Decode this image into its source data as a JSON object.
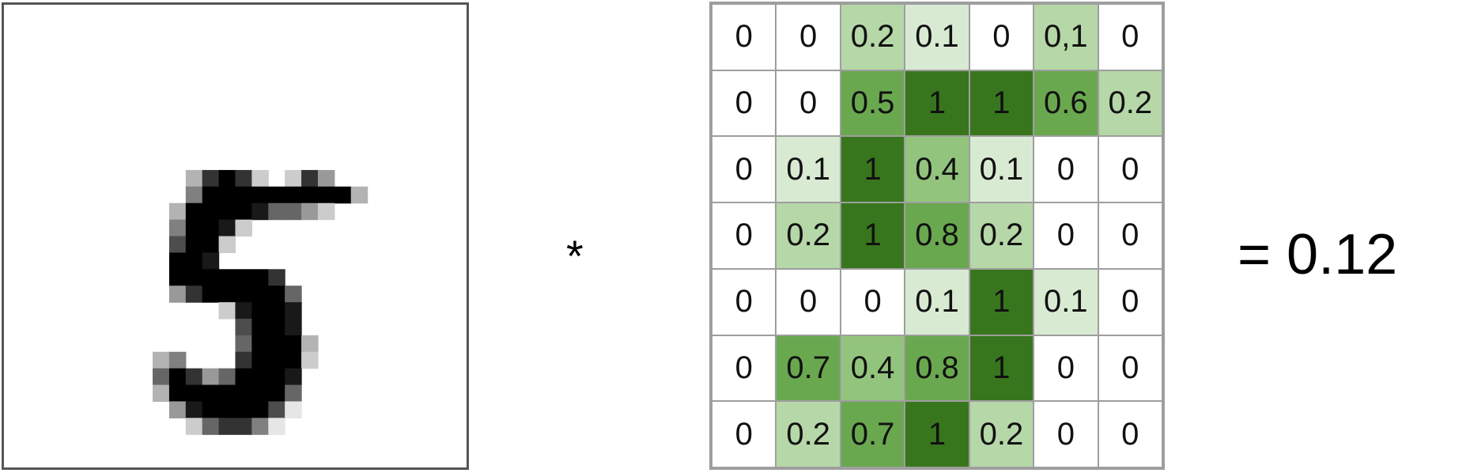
{
  "input_image": {
    "digit": "5",
    "resolution": 28,
    "ink_color": "#000000",
    "background_color": "#ffffff",
    "pixels": [
      [
        0,
        0,
        0,
        0,
        0,
        0,
        0,
        0,
        0,
        0,
        0,
        0,
        0,
        0,
        0,
        0,
        0,
        0,
        0,
        0,
        0,
        0,
        0,
        0,
        0,
        0,
        0,
        0
      ],
      [
        0,
        0,
        0,
        0,
        0,
        0,
        0,
        0,
        0,
        0,
        0,
        0,
        0,
        0,
        0,
        0,
        0,
        0,
        0,
        0,
        0,
        0,
        0,
        0,
        0,
        0,
        0,
        0
      ],
      [
        0,
        0,
        0,
        0,
        0,
        0,
        0,
        0,
        0,
        0,
        0,
        0,
        0,
        0,
        0,
        0,
        0,
        0,
        0,
        0,
        0,
        0,
        0,
        0,
        0,
        0,
        0,
        0
      ],
      [
        0,
        0,
        0,
        0,
        0,
        0,
        0,
        0,
        0,
        0,
        0,
        0,
        0,
        0,
        0,
        0,
        0,
        0,
        0,
        0,
        0,
        0,
        0,
        0,
        0,
        0,
        0,
        0
      ],
      [
        0,
        0,
        0,
        0,
        0,
        0,
        0,
        0,
        0,
        0,
        0,
        0,
        0,
        0,
        0,
        0,
        0,
        0,
        0,
        0,
        0,
        0,
        0,
        0,
        0,
        0,
        0,
        0
      ],
      [
        0,
        0,
        0,
        0,
        0,
        0,
        0,
        0,
        0,
        0,
        0,
        0,
        0,
        0,
        0,
        0,
        0,
        0,
        0,
        0,
        0,
        0,
        0,
        0,
        0,
        0,
        0,
        0
      ],
      [
        0,
        0,
        0,
        0,
        0,
        0,
        0,
        0,
        0,
        0,
        0,
        0,
        0,
        0,
        0,
        0,
        0,
        0,
        0,
        0,
        0,
        0,
        0,
        0,
        0,
        0,
        0,
        0
      ],
      [
        0,
        0,
        0,
        0,
        0,
        0,
        0,
        0,
        0,
        0,
        0,
        0,
        0,
        0,
        0,
        0,
        0,
        0,
        0,
        0,
        0,
        0,
        0,
        0,
        0,
        0,
        0,
        0
      ],
      [
        0,
        0,
        0,
        0,
        0,
        0,
        0,
        0,
        0,
        0,
        0,
        0,
        0,
        0,
        0,
        0,
        0,
        0,
        0,
        0,
        0,
        0,
        0,
        0,
        0,
        0,
        0,
        0
      ],
      [
        0,
        0,
        0,
        0,
        0,
        0,
        0,
        0,
        0,
        0,
        0,
        0,
        0,
        0,
        0,
        0,
        0,
        0,
        0,
        0,
        0,
        0,
        0,
        0,
        0,
        0,
        0,
        0
      ],
      [
        0,
        0,
        0,
        0,
        0,
        0,
        0,
        0,
        0,
        0,
        0,
        0.3,
        0.8,
        1,
        0.8,
        0.2,
        0,
        0.2,
        0.8,
        0.4,
        0,
        0,
        0,
        0,
        0,
        0,
        0,
        0
      ],
      [
        0,
        0,
        0,
        0,
        0,
        0,
        0,
        0,
        0,
        0,
        0,
        0.5,
        1,
        1,
        1,
        1,
        1,
        1,
        1,
        1,
        1,
        0.3,
        0,
        0,
        0,
        0,
        0,
        0
      ],
      [
        0,
        0,
        0,
        0,
        0,
        0,
        0,
        0,
        0,
        0,
        0.3,
        1,
        1,
        1,
        1,
        0.9,
        0.6,
        0.6,
        0.4,
        0.2,
        0,
        0,
        0,
        0,
        0,
        0,
        0,
        0
      ],
      [
        0,
        0,
        0,
        0,
        0,
        0,
        0,
        0,
        0,
        0,
        0.5,
        1,
        1,
        0.9,
        0.2,
        0,
        0,
        0,
        0,
        0,
        0,
        0,
        0,
        0,
        0,
        0,
        0,
        0
      ],
      [
        0,
        0,
        0,
        0,
        0,
        0,
        0,
        0,
        0,
        0,
        0.7,
        1,
        1,
        0.2,
        0,
        0,
        0,
        0,
        0,
        0,
        0,
        0,
        0,
        0,
        0,
        0,
        0,
        0
      ],
      [
        0,
        0,
        0,
        0,
        0,
        0,
        0,
        0,
        0,
        0,
        1,
        1,
        0.9,
        0,
        0,
        0,
        0,
        0,
        0,
        0,
        0,
        0,
        0,
        0,
        0,
        0,
        0,
        0
      ],
      [
        0,
        0,
        0,
        0,
        0,
        0,
        0,
        0,
        0,
        0,
        1,
        1,
        1,
        1,
        1,
        1,
        0.8,
        0,
        0,
        0,
        0,
        0,
        0,
        0,
        0,
        0,
        0,
        0
      ],
      [
        0,
        0,
        0,
        0,
        0,
        0,
        0,
        0,
        0,
        0,
        0.4,
        0.8,
        1,
        1,
        1,
        1,
        1,
        0.6,
        0,
        0,
        0,
        0,
        0,
        0,
        0,
        0,
        0,
        0
      ],
      [
        0,
        0,
        0,
        0,
        0,
        0,
        0,
        0,
        0,
        0,
        0,
        0,
        0,
        0.2,
        0.9,
        1,
        1,
        0.9,
        0,
        0,
        0,
        0,
        0,
        0,
        0,
        0,
        0,
        0
      ],
      [
        0,
        0,
        0,
        0,
        0,
        0,
        0,
        0,
        0,
        0,
        0,
        0,
        0,
        0,
        0.7,
        1,
        1,
        0.9,
        0,
        0,
        0,
        0,
        0,
        0,
        0,
        0,
        0,
        0
      ],
      [
        0,
        0,
        0,
        0,
        0,
        0,
        0,
        0,
        0,
        0,
        0,
        0,
        0,
        0,
        0.6,
        1,
        1,
        1,
        0.3,
        0,
        0,
        0,
        0,
        0,
        0,
        0,
        0,
        0
      ],
      [
        0,
        0,
        0,
        0,
        0,
        0,
        0,
        0,
        0,
        0.3,
        0.5,
        0,
        0,
        0,
        0.8,
        1,
        1,
        1,
        0.2,
        0,
        0,
        0,
        0,
        0,
        0,
        0,
        0,
        0
      ],
      [
        0,
        0,
        0,
        0,
        0,
        0,
        0,
        0,
        0,
        0.6,
        1,
        0.8,
        0.4,
        0.6,
        1,
        1,
        1,
        0.9,
        0,
        0,
        0,
        0,
        0,
        0,
        0,
        0,
        0,
        0
      ],
      [
        0,
        0,
        0,
        0,
        0,
        0,
        0,
        0,
        0,
        0.3,
        1,
        1,
        1,
        1,
        1,
        1,
        1,
        0.6,
        0,
        0,
        0,
        0,
        0,
        0,
        0,
        0,
        0,
        0
      ],
      [
        0,
        0,
        0,
        0,
        0,
        0,
        0,
        0,
        0,
        0,
        0.4,
        0.9,
        1,
        1,
        1,
        1,
        0.7,
        0.1,
        0,
        0,
        0,
        0,
        0,
        0,
        0,
        0,
        0,
        0
      ],
      [
        0,
        0,
        0,
        0,
        0,
        0,
        0,
        0,
        0,
        0,
        0,
        0.2,
        0.6,
        0.8,
        0.8,
        0.5,
        0.1,
        0,
        0,
        0,
        0,
        0,
        0,
        0,
        0,
        0,
        0,
        0
      ],
      [
        0,
        0,
        0,
        0,
        0,
        0,
        0,
        0,
        0,
        0,
        0,
        0,
        0,
        0,
        0,
        0,
        0,
        0,
        0,
        0,
        0,
        0,
        0,
        0,
        0,
        0,
        0,
        0
      ],
      [
        0,
        0,
        0,
        0,
        0,
        0,
        0,
        0,
        0,
        0,
        0,
        0,
        0,
        0,
        0,
        0,
        0,
        0,
        0,
        0,
        0,
        0,
        0,
        0,
        0,
        0,
        0,
        0
      ]
    ]
  },
  "operator": "*",
  "weights": {
    "rows": [
      [
        "0",
        "0",
        "0.2",
        "0.1",
        "0",
        "0,1",
        "0"
      ],
      [
        "0",
        "0",
        "0.5",
        "1",
        "1",
        "0.6",
        "0.2"
      ],
      [
        "0",
        "0.1",
        "1",
        "0.4",
        "0.1",
        "0",
        "0"
      ],
      [
        "0",
        "0.2",
        "1",
        "0.8",
        "0.2",
        "0",
        "0"
      ],
      [
        "0",
        "0",
        "0",
        "0.1",
        "1",
        "0.1",
        "0"
      ],
      [
        "0",
        "0.7",
        "0.4",
        "0.8",
        "1",
        "0",
        "0"
      ],
      [
        "0",
        "0.2",
        "0.7",
        "1",
        "0.2",
        "0",
        "0"
      ]
    ],
    "colors": {
      "zero": "#ffffff",
      "very_light": "#d9ead3",
      "light": "#b6d7a8",
      "medium": "#93c47d",
      "strong": "#6aa84f",
      "full": "#38761d",
      "border": "#9e9e9e"
    }
  },
  "result": "= 0.12"
}
